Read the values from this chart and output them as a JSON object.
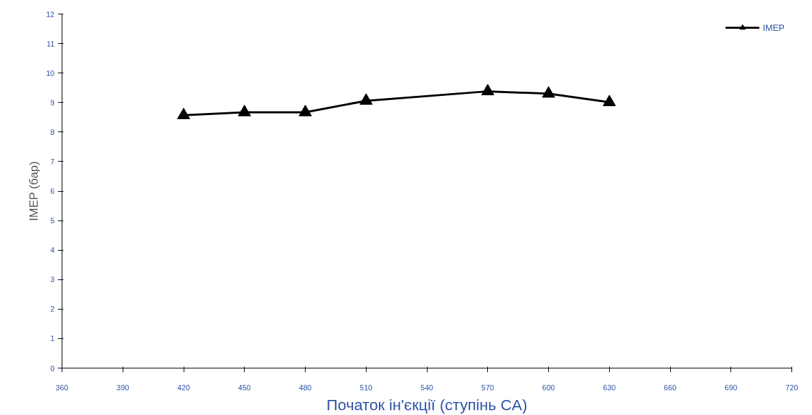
{
  "chart_data": {
    "type": "line",
    "xlabel": "Початок ін'єкції (ступінь CA)",
    "ylabel": "IMEP (бар)",
    "x": [
      420,
      450,
      480,
      510,
      570,
      600,
      630
    ],
    "series": [
      {
        "name": "IMEP",
        "color": "#000000",
        "values": [
          8.57,
          8.67,
          8.67,
          9.06,
          9.38,
          9.3,
          9.01
        ]
      }
    ],
    "xlim": [
      360,
      720
    ],
    "xticks": [
      360,
      390,
      420,
      450,
      480,
      510,
      540,
      570,
      600,
      630,
      660,
      690,
      720
    ],
    "ylim": [
      0,
      12
    ],
    "yticks": [
      0,
      1,
      2,
      3,
      4,
      5,
      6,
      7,
      8,
      9,
      10,
      11,
      12
    ],
    "marker": "triangle",
    "line_style": "solid",
    "grid": false,
    "legend": "top right"
  }
}
